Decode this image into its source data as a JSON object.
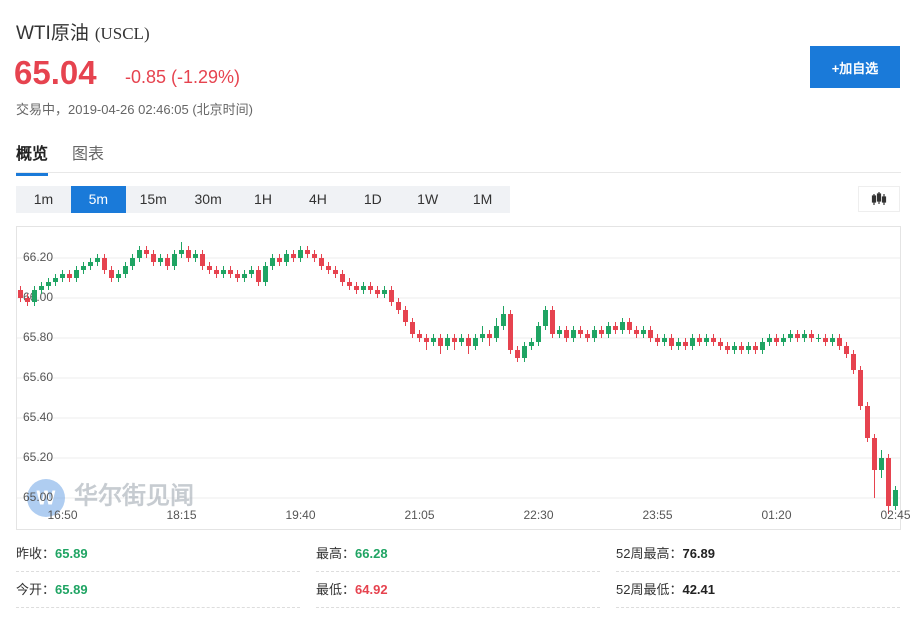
{
  "header": {
    "title": "WTI原油",
    "code": "(USCL)",
    "price": 65.04,
    "change": "-0.85 (-1.29%)",
    "status": "交易中，2019-04-26 02:46:05 (北京时间)",
    "button": "+加自选"
  },
  "tabs": {
    "items": [
      "概览",
      "图表"
    ],
    "active": 0
  },
  "intervals": {
    "items": [
      "1m",
      "5m",
      "15m",
      "30m",
      "1H",
      "4H",
      "1D",
      "1W",
      "1M"
    ],
    "active": 1
  },
  "chart_data": {
    "type": "candlestick",
    "watermark": "华尔街见闻",
    "up_color": "#1fa463",
    "down_color": "#e6434f",
    "grid": true,
    "ylim": [
      64.85,
      66.35
    ],
    "yticks": [
      {
        "value": 65.0,
        "label": "65.00"
      },
      {
        "value": 65.2,
        "label": "65.20"
      },
      {
        "value": 65.4,
        "label": "65.40"
      },
      {
        "value": 65.6,
        "label": "65.60"
      },
      {
        "value": 65.8,
        "label": "65.80"
      },
      {
        "value": 66.0,
        "label": "66.00"
      },
      {
        "value": 66.2,
        "label": "66.20"
      }
    ],
    "categories": [
      null,
      null,
      null,
      null,
      null,
      null,
      "16:50",
      null,
      null,
      null,
      null,
      null,
      null,
      null,
      null,
      null,
      null,
      null,
      null,
      null,
      null,
      null,
      null,
      "18:15",
      null,
      null,
      null,
      null,
      null,
      null,
      null,
      null,
      null,
      null,
      null,
      null,
      null,
      null,
      null,
      null,
      "19:40",
      null,
      null,
      null,
      null,
      null,
      null,
      null,
      null,
      null,
      null,
      null,
      null,
      null,
      null,
      null,
      null,
      "21:05",
      null,
      null,
      null,
      null,
      null,
      null,
      null,
      null,
      null,
      null,
      null,
      null,
      null,
      null,
      null,
      null,
      "22:30",
      null,
      null,
      null,
      null,
      null,
      null,
      null,
      null,
      null,
      null,
      null,
      null,
      null,
      null,
      null,
      null,
      "23:55",
      null,
      null,
      null,
      null,
      null,
      null,
      null,
      null,
      null,
      null,
      null,
      null,
      null,
      null,
      null,
      null,
      "01:20",
      null,
      null,
      null,
      null,
      null,
      null,
      null,
      null,
      null,
      null,
      null,
      null,
      null,
      null,
      null,
      null,
      "02:45"
    ],
    "candles": [
      [
        66.04,
        66.06,
        65.98,
        66.0
      ],
      [
        66.0,
        66.02,
        65.96,
        65.98
      ],
      [
        65.98,
        66.06,
        65.96,
        66.04
      ],
      [
        66.04,
        66.08,
        66.02,
        66.06
      ],
      [
        66.06,
        66.1,
        66.04,
        66.08
      ],
      [
        66.08,
        66.12,
        66.06,
        66.1
      ],
      [
        66.1,
        66.14,
        66.08,
        66.12
      ],
      [
        66.12,
        66.14,
        66.08,
        66.1
      ],
      [
        66.1,
        66.16,
        66.08,
        66.14
      ],
      [
        66.14,
        66.18,
        66.12,
        66.16
      ],
      [
        66.16,
        66.2,
        66.14,
        66.18
      ],
      [
        66.18,
        66.22,
        66.16,
        66.2
      ],
      [
        66.2,
        66.22,
        66.12,
        66.14
      ],
      [
        66.14,
        66.16,
        66.08,
        66.1
      ],
      [
        66.1,
        66.14,
        66.08,
        66.12
      ],
      [
        66.12,
        66.18,
        66.1,
        66.16
      ],
      [
        66.16,
        66.22,
        66.14,
        66.2
      ],
      [
        66.2,
        66.26,
        66.18,
        66.24
      ],
      [
        66.24,
        66.26,
        66.2,
        66.22
      ],
      [
        66.22,
        66.24,
        66.16,
        66.18
      ],
      [
        66.18,
        66.22,
        66.16,
        66.2
      ],
      [
        66.2,
        66.22,
        66.14,
        66.16
      ],
      [
        66.16,
        66.24,
        66.14,
        66.22
      ],
      [
        66.22,
        66.28,
        66.2,
        66.24
      ],
      [
        66.24,
        66.26,
        66.18,
        66.2
      ],
      [
        66.2,
        66.24,
        66.18,
        66.22
      ],
      [
        66.22,
        66.24,
        66.14,
        66.16
      ],
      [
        66.16,
        66.18,
        66.12,
        66.14
      ],
      [
        66.14,
        66.16,
        66.1,
        66.12
      ],
      [
        66.12,
        66.16,
        66.1,
        66.14
      ],
      [
        66.14,
        66.16,
        66.1,
        66.12
      ],
      [
        66.12,
        66.14,
        66.08,
        66.1
      ],
      [
        66.1,
        66.14,
        66.08,
        66.12
      ],
      [
        66.12,
        66.16,
        66.1,
        66.14
      ],
      [
        66.14,
        66.16,
        66.06,
        66.08
      ],
      [
        66.08,
        66.18,
        66.06,
        66.16
      ],
      [
        66.16,
        66.22,
        66.14,
        66.2
      ],
      [
        66.2,
        66.22,
        66.16,
        66.18
      ],
      [
        66.18,
        66.24,
        66.16,
        66.22
      ],
      [
        66.22,
        66.24,
        66.18,
        66.2
      ],
      [
        66.2,
        66.26,
        66.18,
        66.24
      ],
      [
        66.24,
        66.26,
        66.2,
        66.22
      ],
      [
        66.22,
        66.24,
        66.18,
        66.2
      ],
      [
        66.2,
        66.22,
        66.14,
        66.16
      ],
      [
        66.16,
        66.18,
        66.12,
        66.14
      ],
      [
        66.14,
        66.16,
        66.1,
        66.12
      ],
      [
        66.12,
        66.14,
        66.06,
        66.08
      ],
      [
        66.08,
        66.1,
        66.04,
        66.06
      ],
      [
        66.06,
        66.08,
        66.02,
        66.04
      ],
      [
        66.04,
        66.08,
        66.02,
        66.06
      ],
      [
        66.06,
        66.08,
        66.02,
        66.04
      ],
      [
        66.04,
        66.06,
        66.0,
        66.02
      ],
      [
        66.02,
        66.06,
        66.0,
        66.04
      ],
      [
        66.04,
        66.06,
        65.96,
        65.98
      ],
      [
        65.98,
        66.0,
        65.92,
        65.94
      ],
      [
        65.94,
        65.96,
        65.86,
        65.88
      ],
      [
        65.88,
        65.9,
        65.8,
        65.82
      ],
      [
        65.82,
        65.84,
        65.78,
        65.8
      ],
      [
        65.8,
        65.82,
        65.74,
        65.78
      ],
      [
        65.78,
        65.82,
        65.76,
        65.8
      ],
      [
        65.8,
        65.82,
        65.72,
        65.76
      ],
      [
        65.76,
        65.82,
        65.74,
        65.8
      ],
      [
        65.8,
        65.82,
        65.74,
        65.78
      ],
      [
        65.78,
        65.82,
        65.76,
        65.8
      ],
      [
        65.8,
        65.82,
        65.72,
        65.76
      ],
      [
        65.76,
        65.82,
        65.74,
        65.8
      ],
      [
        65.8,
        65.86,
        65.78,
        65.82
      ],
      [
        65.82,
        65.84,
        65.76,
        65.8
      ],
      [
        65.8,
        65.9,
        65.78,
        65.86
      ],
      [
        65.86,
        65.96,
        65.84,
        65.92
      ],
      [
        65.92,
        65.94,
        65.72,
        65.74
      ],
      [
        65.74,
        65.76,
        65.68,
        65.7
      ],
      [
        65.7,
        65.78,
        65.68,
        65.76
      ],
      [
        65.76,
        65.8,
        65.74,
        65.78
      ],
      [
        65.78,
        65.88,
        65.76,
        65.86
      ],
      [
        65.86,
        65.96,
        65.84,
        65.94
      ],
      [
        65.94,
        65.96,
        65.8,
        65.82
      ],
      [
        65.82,
        65.86,
        65.8,
        65.84
      ],
      [
        65.84,
        65.86,
        65.78,
        65.8
      ],
      [
        65.8,
        65.86,
        65.78,
        65.84
      ],
      [
        65.84,
        65.86,
        65.8,
        65.82
      ],
      [
        65.82,
        65.84,
        65.78,
        65.8
      ],
      [
        65.8,
        65.86,
        65.78,
        65.84
      ],
      [
        65.84,
        65.86,
        65.8,
        65.82
      ],
      [
        65.82,
        65.88,
        65.8,
        65.86
      ],
      [
        65.86,
        65.88,
        65.82,
        65.84
      ],
      [
        65.84,
        65.9,
        65.82,
        65.88
      ],
      [
        65.88,
        65.9,
        65.82,
        65.84
      ],
      [
        65.84,
        65.86,
        65.8,
        65.82
      ],
      [
        65.82,
        65.86,
        65.8,
        65.84
      ],
      [
        65.84,
        65.86,
        65.78,
        65.8
      ],
      [
        65.8,
        65.82,
        65.76,
        65.78
      ],
      [
        65.78,
        65.82,
        65.76,
        65.8
      ],
      [
        65.8,
        65.82,
        65.74,
        65.76
      ],
      [
        65.76,
        65.8,
        65.74,
        65.78
      ],
      [
        65.78,
        65.8,
        65.74,
        65.76
      ],
      [
        65.76,
        65.82,
        65.74,
        65.8
      ],
      [
        65.8,
        65.82,
        65.76,
        65.78
      ],
      [
        65.78,
        65.82,
        65.76,
        65.8
      ],
      [
        65.8,
        65.82,
        65.76,
        65.78
      ],
      [
        65.78,
        65.8,
        65.74,
        65.76
      ],
      [
        65.76,
        65.78,
        65.72,
        65.74
      ],
      [
        65.74,
        65.78,
        65.72,
        65.76
      ],
      [
        65.76,
        65.78,
        65.72,
        65.74
      ],
      [
        65.74,
        65.78,
        65.72,
        65.76
      ],
      [
        65.76,
        65.78,
        65.72,
        65.74
      ],
      [
        65.74,
        65.8,
        65.72,
        65.78
      ],
      [
        65.78,
        65.82,
        65.76,
        65.8
      ],
      [
        65.8,
        65.82,
        65.76,
        65.78
      ],
      [
        65.78,
        65.82,
        65.76,
        65.8
      ],
      [
        65.8,
        65.84,
        65.78,
        65.82
      ],
      [
        65.82,
        65.84,
        65.78,
        65.8
      ],
      [
        65.8,
        65.84,
        65.78,
        65.82
      ],
      [
        65.82,
        65.84,
        65.78,
        65.8
      ],
      [
        65.8,
        65.82,
        65.78,
        65.8
      ],
      [
        65.8,
        65.82,
        65.76,
        65.78
      ],
      [
        65.78,
        65.82,
        65.76,
        65.8
      ],
      [
        65.8,
        65.82,
        65.74,
        65.76
      ],
      [
        65.76,
        65.78,
        65.7,
        65.72
      ],
      [
        65.72,
        65.74,
        65.62,
        65.64
      ],
      [
        65.64,
        65.66,
        65.44,
        65.46
      ],
      [
        65.46,
        65.48,
        65.28,
        65.3
      ],
      [
        65.3,
        65.32,
        65.0,
        65.14
      ],
      [
        65.14,
        65.24,
        65.1,
        65.2
      ],
      [
        65.2,
        65.22,
        64.92,
        64.96
      ],
      [
        64.96,
        65.06,
        64.94,
        65.04
      ]
    ]
  },
  "stats": [
    [
      {
        "label": "昨收：",
        "value": 65.89,
        "color": "#1fa463"
      },
      {
        "label": "最高：",
        "value": 66.28,
        "color": "#1fa463"
      },
      {
        "label": "52周最高：",
        "value": 76.89,
        "color": "#222222"
      }
    ],
    [
      {
        "label": "今开：",
        "value": 65.89,
        "color": "#1fa463"
      },
      {
        "label": "最低：",
        "value": 64.92,
        "color": "#e6434f"
      },
      {
        "label": "52周最低：",
        "value": 42.41,
        "color": "#222222"
      }
    ]
  ]
}
